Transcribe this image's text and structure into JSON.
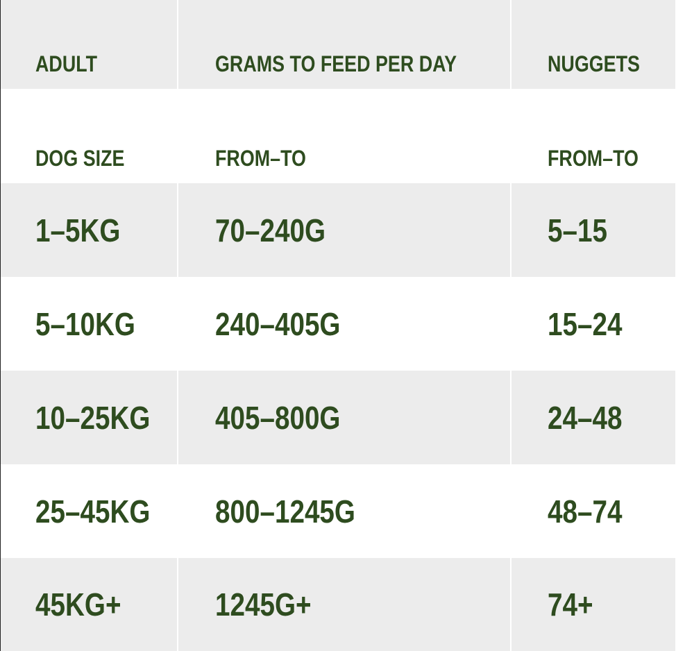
{
  "table": {
    "header": [
      [
        "ADULT",
        "GRAMS TO FEED PER DAY",
        "NUGGETS"
      ],
      [
        "DOG SIZE",
        "FROM–TO",
        "FROM–TO"
      ]
    ],
    "rows": [
      [
        "1–5KG",
        "70–240G",
        "5–15"
      ],
      [
        "5–10KG",
        "240–405G",
        "15–24"
      ],
      [
        "10–25KG",
        "405–800G",
        "24–48"
      ],
      [
        "25–45KG",
        "800–1245G",
        "48–74"
      ],
      [
        "45KG+",
        "1245G+",
        "74+"
      ]
    ]
  }
}
